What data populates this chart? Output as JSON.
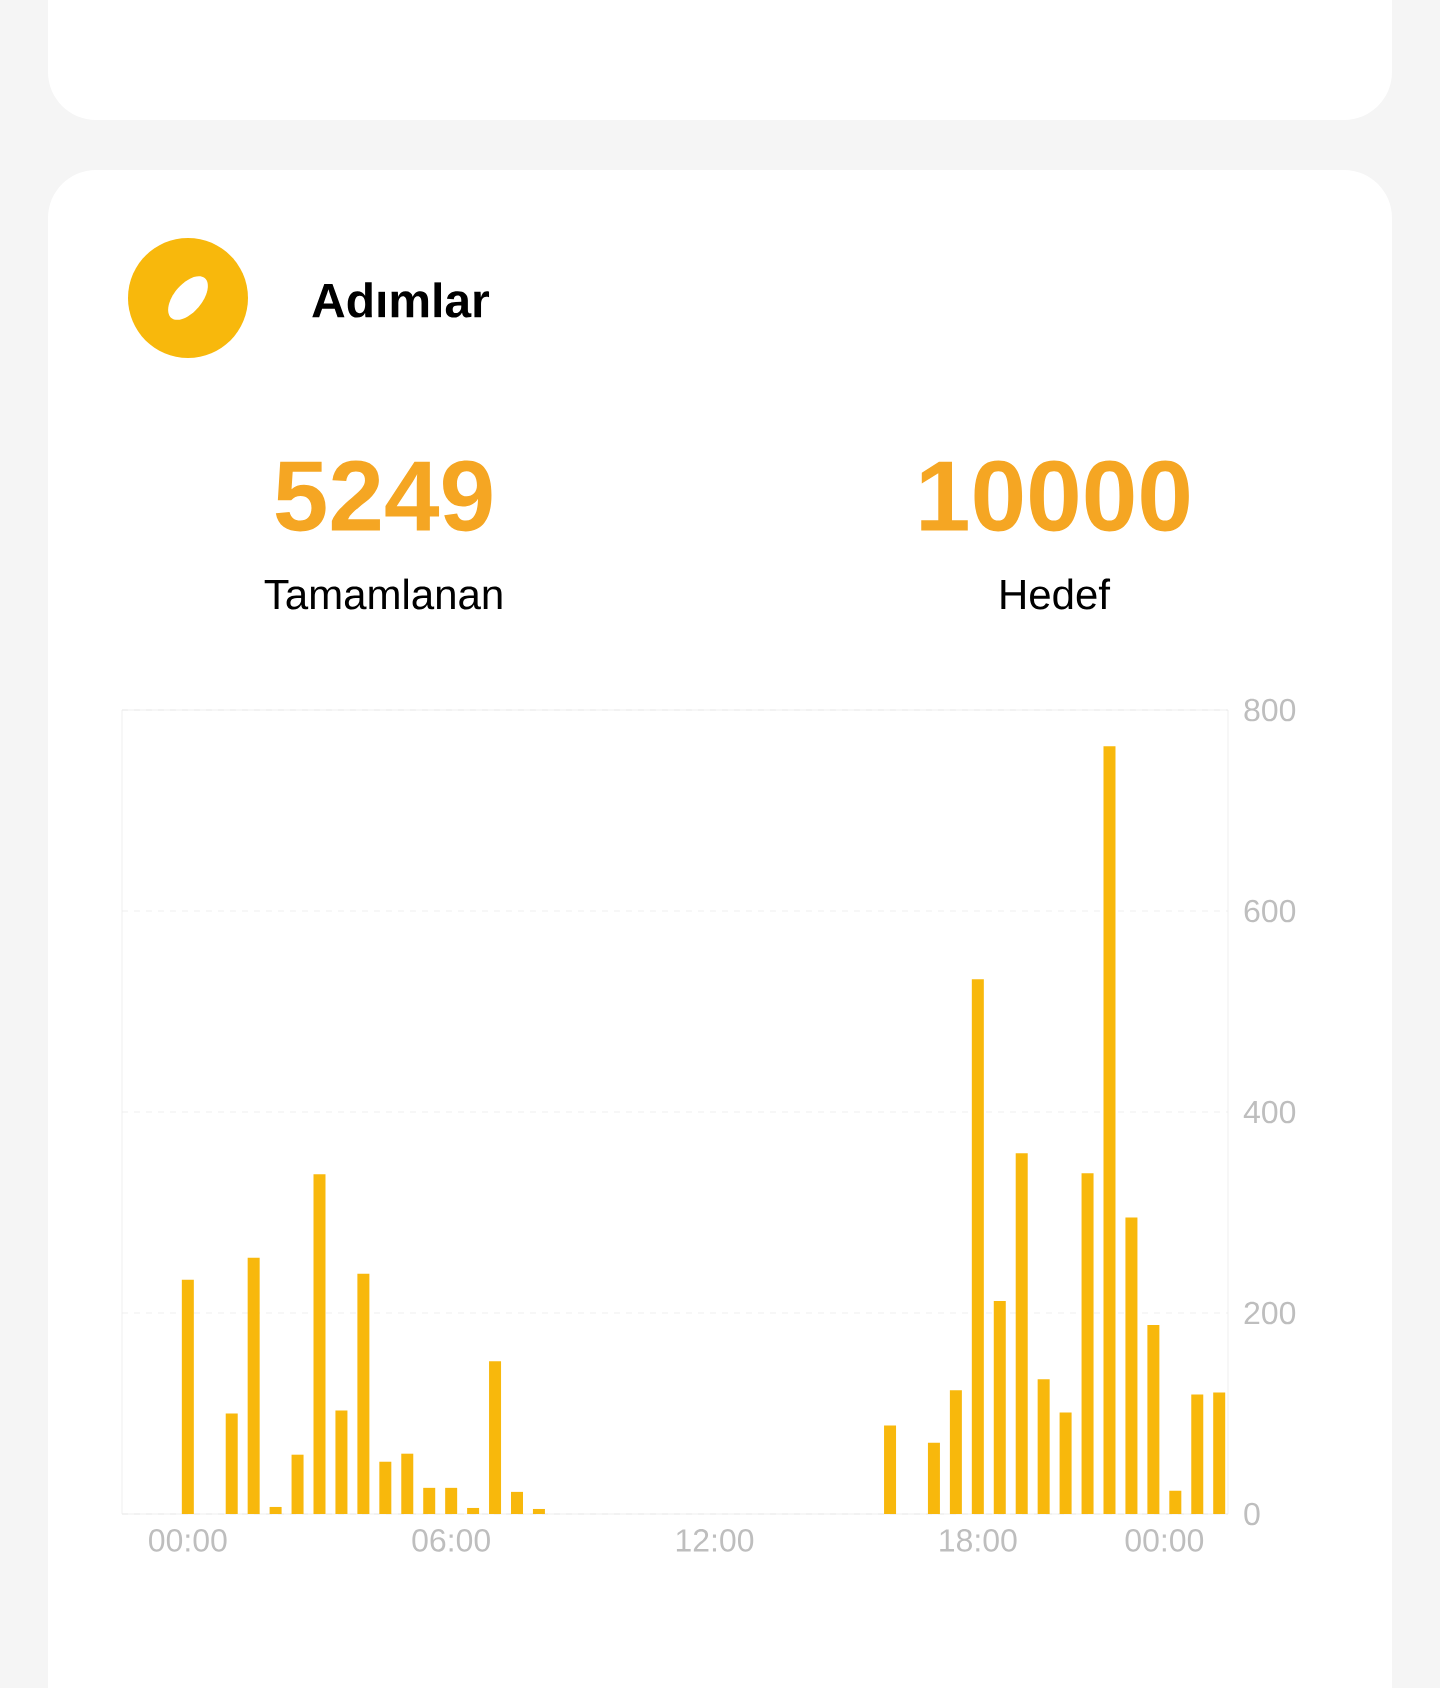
{
  "chart_data": {
    "type": "bar",
    "title": "Adımlar",
    "annotations": [
      "5249",
      "Tamamlanan",
      "10000",
      "Hedef"
    ],
    "x": [
      0,
      0.5,
      1,
      1.5,
      2,
      2.5,
      3,
      3.5,
      4,
      4.5,
      5,
      5.5,
      6,
      6.5,
      7,
      7.5,
      8,
      8.5,
      9,
      9.5,
      10,
      10.5,
      11,
      11.5,
      12,
      12.5,
      13,
      13.5,
      14,
      14.5,
      15,
      15.5,
      16,
      16.5,
      17,
      17.5,
      18,
      18.5,
      19,
      19.5,
      20,
      20.5,
      21,
      21.5,
      22,
      22.5,
      23,
      23.5
    ],
    "values": [
      233,
      null,
      100,
      255,
      7,
      59,
      338,
      103,
      239,
      52,
      60,
      26,
      26,
      6,
      152,
      22,
      5,
      null,
      null,
      null,
      null,
      null,
      null,
      null,
      null,
      null,
      null,
      null,
      null,
      null,
      null,
      null,
      88,
      null,
      71,
      123,
      532,
      212,
      359,
      134,
      101,
      339,
      764,
      295,
      188,
      23,
      119,
      121
    ],
    "color": "#f8b80c",
    "xlim": [
      -1.5,
      23.7
    ],
    "xticks": [
      {
        "value": 0,
        "label": "00:00"
      },
      {
        "value": 6,
        "label": "06:00"
      },
      {
        "value": 12,
        "label": "12:00"
      },
      {
        "value": 18,
        "label": "18:00"
      },
      {
        "value": 22.25,
        "label": "00:00"
      }
    ],
    "ylim": [
      0,
      800
    ],
    "yticks": [
      0,
      200,
      400,
      600,
      800
    ],
    "grid": "y"
  }
}
